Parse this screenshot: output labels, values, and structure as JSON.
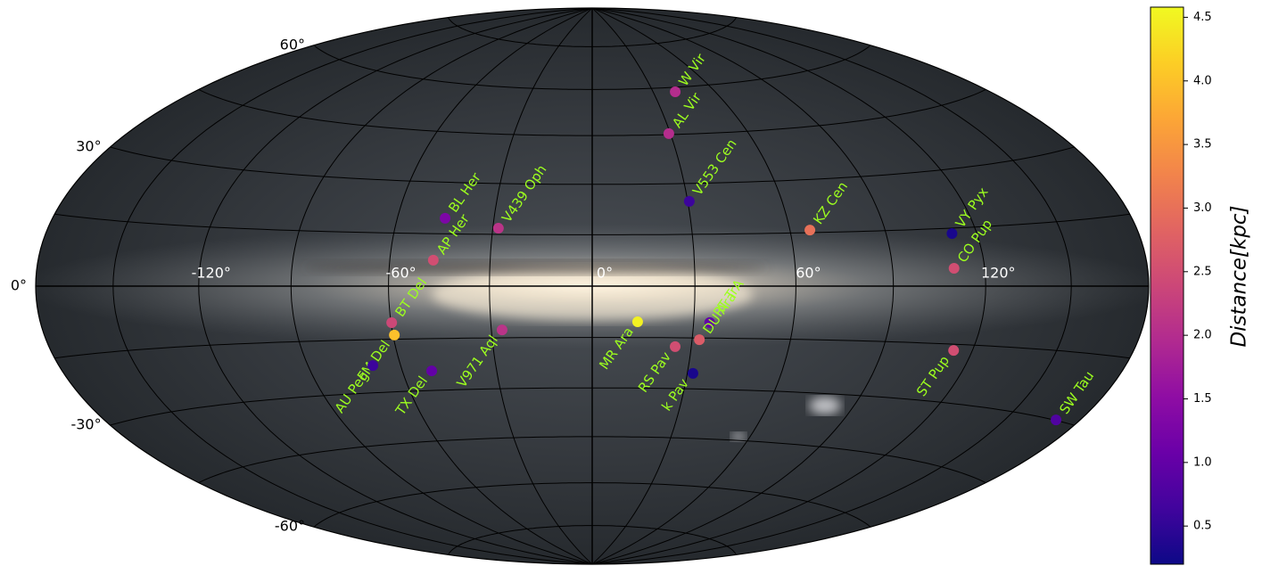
{
  "chart_data": {
    "type": "scatter",
    "projection": "hammer",
    "labels": [
      "W Vir",
      "AL Vir",
      "V553 Cen",
      "KZ Cen",
      "VY Pyx",
      "CO Pup",
      "ST Pup",
      "SW Tau",
      "RT TrA",
      "DU Ara",
      "RS Pav",
      "k Pav",
      "MR Ara",
      "V971 Aql",
      "V439 Oph",
      "BL Her",
      "AP Her",
      "BT Del",
      "FM Del",
      "AU Peg",
      "TX Del"
    ],
    "x": [
      40.8,
      29.4,
      30.5,
      66.2,
      111.6,
      109.8,
      113.6,
      170.2,
      34.8,
      32.2,
      25.1,
      31.8,
      13.4,
      -26.8,
      -28.3,
      -45.1,
      -46.9,
      -59.8,
      -59.6,
      -68.9,
      -50.6
    ],
    "y": [
      58.5,
      45.3,
      24.7,
      15.7,
      13.6,
      4.6,
      -16.6,
      -29.9,
      -10.5,
      -15.5,
      -17.6,
      -25.4,
      -10.4,
      -12.7,
      16.8,
      19.5,
      7.4,
      -10.3,
      -13.8,
      -22.3,
      -24.3
    ],
    "values": [
      2.0,
      2.0,
      0.6,
      3.0,
      0.3,
      2.5,
      2.5,
      0.8,
      1.0,
      2.7,
      2.5,
      0.3,
      4.5,
      2.1,
      2.1,
      1.3,
      2.5,
      2.4,
      4.0,
      0.6,
      1.0
    ],
    "colormap": "plasma",
    "xlim": [
      -180,
      180
    ],
    "ylim": [
      -90,
      90
    ],
    "xticks": [
      {
        "value": -120,
        "label": "-120°"
      },
      {
        "value": -60,
        "label": "-60°"
      },
      {
        "value": 0,
        "label": "0°"
      },
      {
        "value": 60,
        "label": "60°"
      },
      {
        "value": 120,
        "label": "120°"
      }
    ],
    "yticks": [
      {
        "value": -60,
        "label": "-60°"
      },
      {
        "value": -30,
        "label": "-30°"
      },
      {
        "value": 0,
        "label": "0°"
      },
      {
        "value": 30,
        "label": "30°"
      },
      {
        "value": 60,
        "label": "60°"
      }
    ],
    "grid": true,
    "colorbar": {
      "label": "Distance[kpc]",
      "lim": [
        0.2,
        4.58
      ],
      "ticks": [
        0.5,
        {
          "value": 1.0,
          "label": "1.0"
        },
        1.5,
        {
          "value": 2.0,
          "label": "2.0"
        },
        2.5,
        {
          "value": 3.0,
          "label": "3.0"
        },
        3.5,
        {
          "value": 4.0,
          "label": "4.0"
        },
        4.5
      ]
    }
  }
}
